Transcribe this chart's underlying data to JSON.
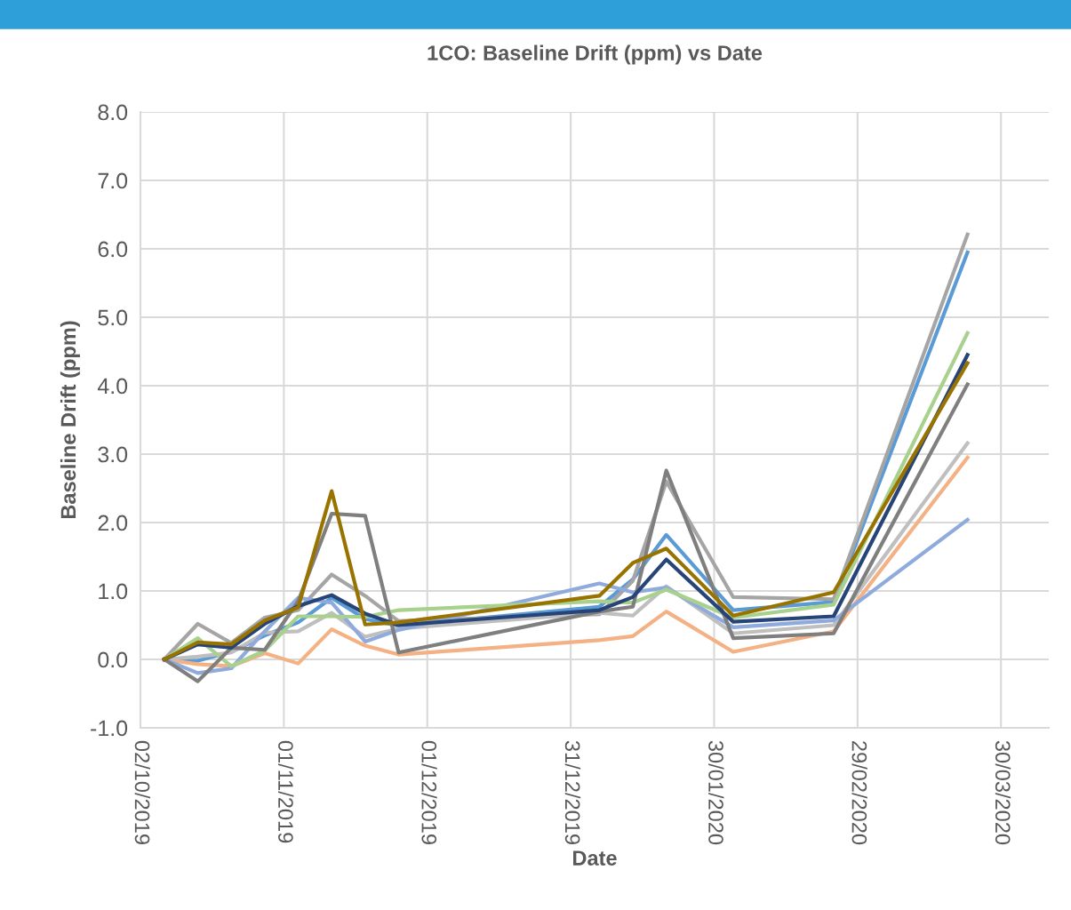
{
  "chart_data": {
    "type": "line",
    "title": "1CO: Baseline Drift (ppm) vs Date",
    "xlabel": "Date",
    "ylabel": "Baseline Drift (ppm)",
    "x": [
      "2019-10-07",
      "2019-10-14",
      "2019-10-21",
      "2019-10-28",
      "2019-11-04",
      "2019-11-11",
      "2019-11-18",
      "2019-11-25",
      "2020-01-06",
      "2020-01-13",
      "2020-01-20",
      "2020-02-03",
      "2020-02-24",
      "2020-03-23"
    ],
    "series": [
      {
        "color": "#5b9bd5",
        "values": [
          0,
          -0.02,
          0.11,
          0.35,
          0.54,
          0.9,
          0.59,
          0.49,
          0.77,
          1.17,
          1.82,
          0.72,
          0.84,
          5.95
        ]
      },
      {
        "color": "#f4b183",
        "values": [
          0,
          -0.07,
          -0.1,
          0.09,
          -0.06,
          0.44,
          0.2,
          0.07,
          0.28,
          0.34,
          0.7,
          0.11,
          0.41,
          2.95
        ]
      },
      {
        "color": "#a5a5a5",
        "values": [
          0,
          0.52,
          0.24,
          0.61,
          0.72,
          1.24,
          0.93,
          0.56,
          0.66,
          1.15,
          2.6,
          0.91,
          0.88,
          6.21
        ]
      },
      {
        "color": "#bfbfbf",
        "values": [
          0,
          0.04,
          0.1,
          0.39,
          0.41,
          0.68,
          0.33,
          0.45,
          0.68,
          0.64,
          1.07,
          0.38,
          0.5,
          3.16
        ]
      },
      {
        "color": "#8faadc",
        "values": [
          0,
          -0.2,
          -0.13,
          0.41,
          0.9,
          0.83,
          0.26,
          0.43,
          1.11,
          0.98,
          1.05,
          0.47,
          0.57,
          2.04
        ]
      },
      {
        "color": "#a9d18e",
        "values": [
          0,
          0.31,
          -0.1,
          0.13,
          0.63,
          0.63,
          0.62,
          0.72,
          0.85,
          0.83,
          1.02,
          0.61,
          0.8,
          4.77
        ]
      },
      {
        "color": "#7f7f7f",
        "values": [
          0,
          -0.32,
          0.17,
          0.14,
          0.85,
          2.13,
          2.1,
          0.1,
          0.7,
          0.77,
          2.76,
          0.31,
          0.38,
          4.02
        ]
      },
      {
        "color": "#264478",
        "values": [
          0,
          0.22,
          0.17,
          0.52,
          0.78,
          0.94,
          0.67,
          0.5,
          0.72,
          0.91,
          1.46,
          0.55,
          0.63,
          4.45
        ]
      },
      {
        "color": "#997300",
        "values": [
          0,
          0.25,
          0.22,
          0.57,
          0.76,
          2.46,
          0.51,
          0.54,
          0.93,
          1.41,
          1.62,
          0.64,
          0.98,
          4.33
        ]
      }
    ],
    "xlim": [
      "2019-10-02",
      "2020-04-09"
    ],
    "xticks": [
      {
        "value": "2019-10-02",
        "label": "02/10/2019"
      },
      {
        "value": "2019-11-01",
        "label": "01/11/2019"
      },
      {
        "value": "2019-12-01",
        "label": "01/12/2019"
      },
      {
        "value": "2019-12-31",
        "label": "31/12/2019"
      },
      {
        "value": "2020-01-30",
        "label": "30/01/2020"
      },
      {
        "value": "2020-02-29",
        "label": "29/02/2020"
      },
      {
        "value": "2020-03-30",
        "label": "30/03/2020"
      }
    ],
    "ylim": [
      -1,
      8
    ],
    "yticks": [
      {
        "value": -1,
        "label": "-1.0"
      },
      {
        "value": 0,
        "label": "0.0"
      },
      {
        "value": 1,
        "label": "1.0"
      },
      {
        "value": 2,
        "label": "2.0"
      },
      {
        "value": 3,
        "label": "3.0"
      },
      {
        "value": 4,
        "label": "4.0"
      },
      {
        "value": 5,
        "label": "5.0"
      },
      {
        "value": 6,
        "label": "6.0"
      },
      {
        "value": 7,
        "label": "7.0"
      },
      {
        "value": 8,
        "label": "8.0"
      }
    ],
    "grid": true,
    "marker": "none",
    "line_style": "solid"
  }
}
